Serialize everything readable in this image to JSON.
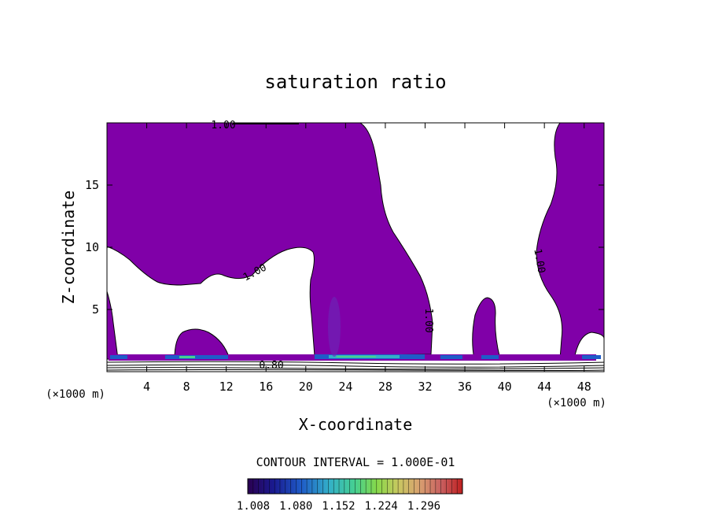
{
  "chart_data": {
    "type": "contour",
    "title": "saturation ratio",
    "xlabel": "X-coordinate",
    "ylabel": "Z-coordinate",
    "x_unit": "(×1000 m)",
    "z_unit": "(×1000 m)",
    "xlim": [
      0,
      50
    ],
    "ylim": [
      0,
      20
    ],
    "x_ticks": [
      4,
      8,
      12,
      16,
      20,
      24,
      28,
      32,
      36,
      40,
      44,
      48
    ],
    "y_ticks": [
      5,
      10,
      15
    ],
    "contour_labels": [
      "1.00",
      "1.00",
      "1.00",
      "1.00",
      "0.80"
    ],
    "contour_interval_text": "CONTOUR INTERVAL = 1.000E-01",
    "colorbar": {
      "ticks": [
        "1.008",
        "1.080",
        "1.152",
        "1.224",
        "1.296"
      ],
      "colors": [
        "#2a0050",
        "#1a1a90",
        "#1f5cc8",
        "#33b0c8",
        "#46d090",
        "#86d84a",
        "#c8c860",
        "#d8a070",
        "#c86060",
        "#c02020"
      ]
    },
    "fill_color": "#8000a8"
  }
}
